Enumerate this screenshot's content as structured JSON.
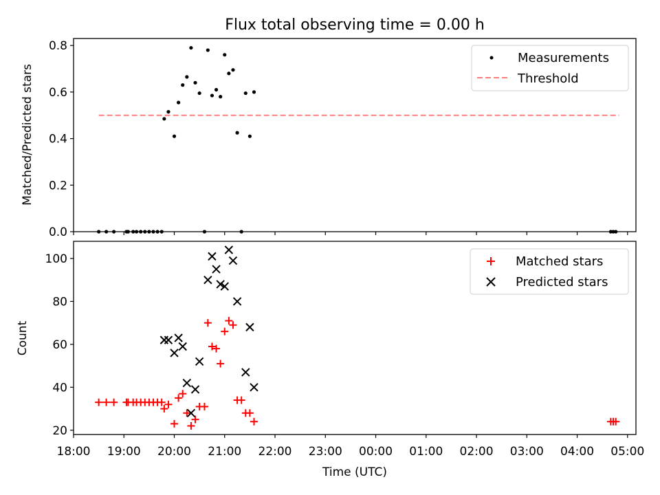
{
  "figure": {
    "title": "Flux total observing time = 0.00 h",
    "xlabel": "Time (UTC)"
  },
  "colors": {
    "measurement": "#000000",
    "threshold": "#ff7f7f",
    "matched": "#ff0000",
    "predicted": "#000000"
  },
  "chart_data": [
    {
      "type": "scatter",
      "panel": "top",
      "ylabel": "Matched/Predicted stars",
      "xlim": [
        "18:00",
        "05:10"
      ],
      "ylim": [
        0,
        0.83
      ],
      "yticks": [
        0.0,
        0.2,
        0.4,
        0.6,
        0.8
      ],
      "ytick_labels": [
        "0.0",
        "0.2",
        "0.4",
        "0.6",
        "0.8"
      ],
      "legend_position": "top-right",
      "series": [
        {
          "name": "Measurements",
          "kind": "scatter-dot",
          "points": [
            [
              "18:30",
              0
            ],
            [
              "18:39",
              0
            ],
            [
              "18:48",
              0
            ],
            [
              "19:03",
              0
            ],
            [
              "19:05",
              0
            ],
            [
              "19:11",
              0
            ],
            [
              "19:15",
              0
            ],
            [
              "19:20",
              0
            ],
            [
              "19:25",
              0
            ],
            [
              "19:30",
              0
            ],
            [
              "19:35",
              0
            ],
            [
              "19:40",
              0
            ],
            [
              "19:45",
              0
            ],
            [
              "19:48",
              0.485
            ],
            [
              "19:53",
              0.515
            ],
            [
              "20:00",
              0.41
            ],
            [
              "20:05",
              0.555
            ],
            [
              "20:10",
              0.63
            ],
            [
              "20:15",
              0.665
            ],
            [
              "20:20",
              0.79
            ],
            [
              "20:25",
              0.64
            ],
            [
              "20:30",
              0.595
            ],
            [
              "20:36",
              0.0
            ],
            [
              "20:40",
              0.78
            ],
            [
              "20:45",
              0.585
            ],
            [
              "20:50",
              0.61
            ],
            [
              "20:55",
              0.58
            ],
            [
              "21:00",
              0.76
            ],
            [
              "21:05",
              0.68
            ],
            [
              "21:10",
              0.695
            ],
            [
              "21:15",
              0.425
            ],
            [
              "21:20",
              0.0
            ],
            [
              "21:25",
              0.595
            ],
            [
              "21:30",
              0.41
            ],
            [
              "21:35",
              0.6
            ],
            [
              "04:40",
              0
            ],
            [
              "04:43",
              0
            ],
            [
              "04:46",
              0
            ]
          ]
        },
        {
          "name": "Threshold",
          "kind": "dashed-line",
          "points": [
            [
              "18:30",
              0.5
            ],
            [
              "04:50",
              0.5
            ]
          ]
        }
      ]
    },
    {
      "type": "scatter",
      "panel": "bottom",
      "ylabel": "Count",
      "xlim": [
        "18:00",
        "05:10"
      ],
      "ylim": [
        18,
        108
      ],
      "yticks": [
        20,
        40,
        60,
        80,
        100
      ],
      "ytick_labels": [
        "20",
        "40",
        "60",
        "80",
        "100"
      ],
      "xticks": [
        "18:00",
        "19:00",
        "20:00",
        "21:00",
        "22:00",
        "23:00",
        "00:00",
        "01:00",
        "02:00",
        "03:00",
        "04:00",
        "05:00"
      ],
      "legend_position": "top-right",
      "series": [
        {
          "name": "Matched stars",
          "kind": "plus",
          "points": [
            [
              "18:30",
              33
            ],
            [
              "18:39",
              33
            ],
            [
              "18:48",
              33
            ],
            [
              "19:03",
              33
            ],
            [
              "19:05",
              33
            ],
            [
              "19:11",
              33
            ],
            [
              "19:15",
              33
            ],
            [
              "19:20",
              33
            ],
            [
              "19:25",
              33
            ],
            [
              "19:30",
              33
            ],
            [
              "19:35",
              33
            ],
            [
              "19:40",
              33
            ],
            [
              "19:45",
              33
            ],
            [
              "19:48",
              30
            ],
            [
              "19:53",
              32
            ],
            [
              "20:00",
              23
            ],
            [
              "20:05",
              35
            ],
            [
              "20:10",
              37
            ],
            [
              "20:15",
              28
            ],
            [
              "20:20",
              22
            ],
            [
              "20:25",
              25
            ],
            [
              "20:30",
              31
            ],
            [
              "20:36",
              31
            ],
            [
              "20:40",
              70
            ],
            [
              "20:45",
              59
            ],
            [
              "20:50",
              58
            ],
            [
              "20:55",
              51
            ],
            [
              "21:00",
              66
            ],
            [
              "21:05",
              71
            ],
            [
              "21:10",
              69
            ],
            [
              "21:15",
              34
            ],
            [
              "21:20",
              34
            ],
            [
              "21:25",
              28
            ],
            [
              "21:30",
              28
            ],
            [
              "21:35",
              24
            ],
            [
              "04:40",
              24
            ],
            [
              "04:43",
              24
            ],
            [
              "04:46",
              24
            ]
          ]
        },
        {
          "name": "Predicted stars",
          "kind": "x",
          "points": [
            [
              "19:48",
              62
            ],
            [
              "19:53",
              62
            ],
            [
              "20:00",
              56
            ],
            [
              "20:05",
              63
            ],
            [
              "20:10",
              59
            ],
            [
              "20:15",
              42
            ],
            [
              "20:20",
              28
            ],
            [
              "20:25",
              39
            ],
            [
              "20:30",
              52
            ],
            [
              "20:40",
              90
            ],
            [
              "20:45",
              101
            ],
            [
              "20:50",
              95
            ],
            [
              "20:55",
              88
            ],
            [
              "21:00",
              87
            ],
            [
              "21:05",
              104
            ],
            [
              "21:10",
              99
            ],
            [
              "21:15",
              80
            ],
            [
              "21:25",
              47
            ],
            [
              "21:30",
              68
            ],
            [
              "21:35",
              40
            ]
          ]
        }
      ]
    }
  ]
}
